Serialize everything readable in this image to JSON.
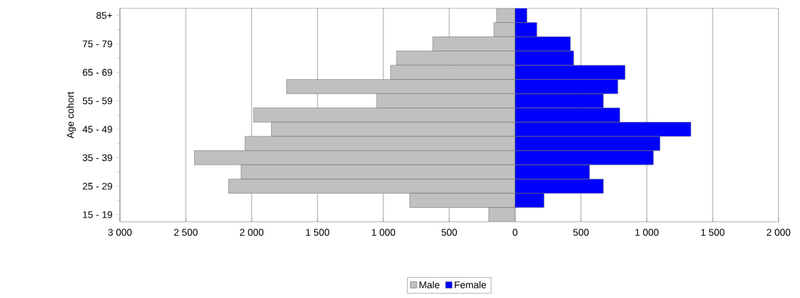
{
  "chart_data": {
    "type": "bar",
    "orientation": "horizontal",
    "stacked": true,
    "ylabel": "Age cohort",
    "categories": [
      "85+",
      null,
      "75 - 79",
      null,
      "65 - 69",
      null,
      "55 - 59",
      null,
      "45 - 49",
      null,
      "35 - 39",
      null,
      "25 - 29",
      null,
      "15 - 19"
    ],
    "series": [
      {
        "name": "Male",
        "color": "#c0c0c0",
        "values": [
          -140,
          -160,
          -625,
          -900,
          -945,
          -1735,
          -1050,
          -1985,
          -1850,
          -2050,
          -2435,
          -2080,
          -2175,
          -800,
          -200
        ]
      },
      {
        "name": "Female",
        "color": "#0000ff",
        "values": [
          90,
          165,
          420,
          445,
          835,
          780,
          670,
          795,
          1335,
          1100,
          1050,
          565,
          670,
          220,
          null
        ]
      }
    ],
    "xlim": [
      -3000,
      2000
    ],
    "xticks": [
      {
        "value": -3000,
        "label": "3 000"
      },
      {
        "value": -2500,
        "label": "2 500"
      },
      {
        "value": -2000,
        "label": "2 000"
      },
      {
        "value": -1500,
        "label": "1 500"
      },
      {
        "value": -1000,
        "label": "1 000"
      },
      {
        "value": -500,
        "label": "500"
      },
      0,
      500,
      {
        "value": 1000,
        "label": "1 000"
      },
      {
        "value": 1500,
        "label": "1 500"
      },
      {
        "value": 2000,
        "label": "2 000"
      }
    ],
    "grid": "x",
    "legend": "bottom"
  }
}
